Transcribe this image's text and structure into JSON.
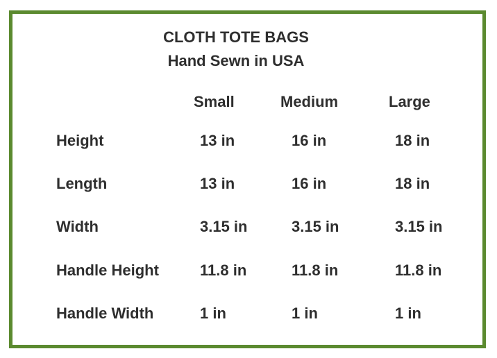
{
  "colors": {
    "border": "#5b8a2f",
    "text": "#2e2e2e"
  },
  "title": "CLOTH TOTE BAGS",
  "subtitle": "Hand Sewn in USA",
  "columns": [
    "Small",
    "Medium",
    "Large"
  ],
  "rows": [
    {
      "label": "Height",
      "values": [
        "13 in",
        "16 in",
        "18 in"
      ]
    },
    {
      "label": "Length",
      "values": [
        "13 in",
        "16 in",
        "18 in"
      ]
    },
    {
      "label": "Width",
      "values": [
        "3.15 in",
        "3.15 in",
        "3.15 in"
      ]
    },
    {
      "label": "Handle Height",
      "values": [
        "11.8 in",
        "11.8 in",
        "11.8 in"
      ]
    },
    {
      "label": "Handle Width",
      "values": [
        "1 in",
        "1 in",
        "1 in"
      ]
    }
  ]
}
